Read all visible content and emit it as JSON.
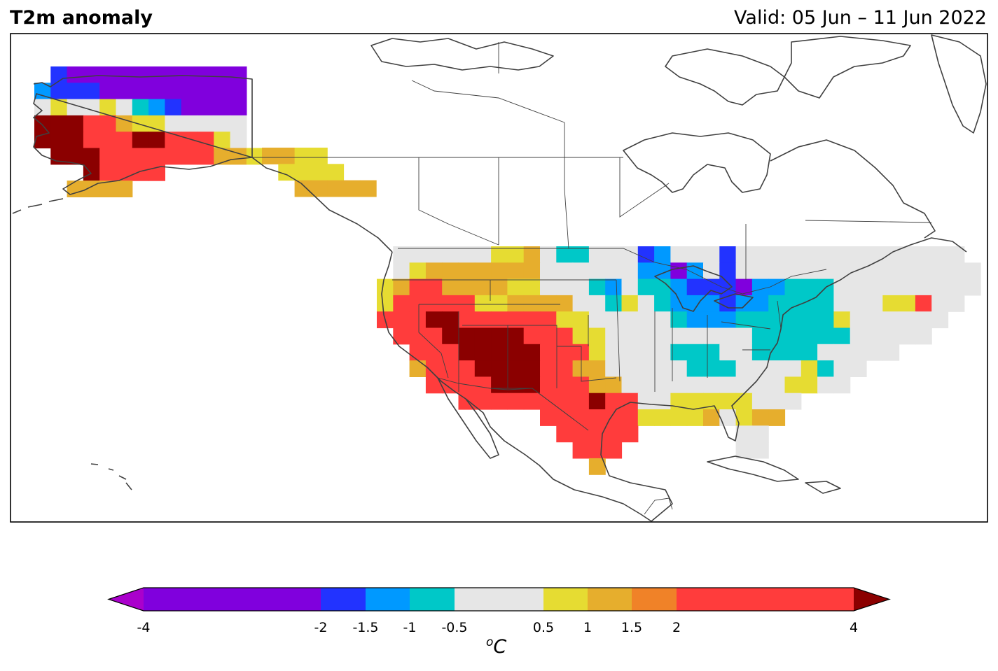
{
  "header": {
    "title": "T2m anomaly",
    "valid": "Valid: 05 Jun – 11 Jun 2022"
  },
  "colorbar": {
    "units_base": "C",
    "units_sup": "o",
    "bounds": [
      -4,
      -2,
      -1.5,
      -1,
      -0.5,
      0.5,
      1,
      1.5,
      2,
      4
    ],
    "tick_labels": [
      "-4",
      "-2",
      "-1.5",
      "-1",
      "-0.5",
      "0.5",
      "1",
      "1.5",
      "2",
      "4"
    ],
    "colors": [
      "#8000dd",
      "#2233ff",
      "#0099ff",
      "#00c8c8",
      "#e6e6e6",
      "#e6dc32",
      "#e6ae2d",
      "#f08228",
      "#ff3c3c"
    ],
    "under_color": "#aa00cc",
    "over_color": "#8b0000",
    "extend": "both"
  },
  "map": {
    "region": "North America",
    "variable": "2 m temperature anomaly",
    "land_outline_color": "#404040"
  }
}
